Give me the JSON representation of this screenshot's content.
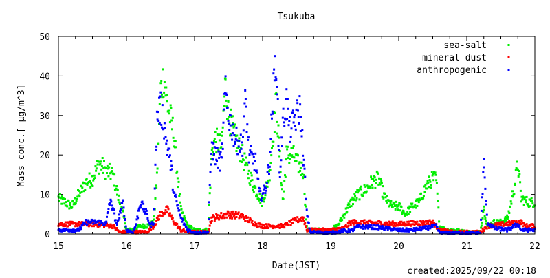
{
  "chart_data": {
    "type": "scatter",
    "title": "Tsukuba",
    "xlabel": "Date(JST)",
    "ylabel": "Mass conc.[ μg/m^3]",
    "footer": "created:2025/09/22 00:18",
    "xlim": [
      15,
      22
    ],
    "ylim": [
      0,
      50
    ],
    "xticks": [
      "15",
      "16",
      "17",
      "18",
      "19",
      "20",
      "21",
      "22"
    ],
    "yticks": [
      "0",
      "10",
      "20",
      "30",
      "40",
      "50"
    ],
    "legend_position": "top-right",
    "grid": false,
    "series": [
      {
        "name": "sea-salt",
        "color": "#00ee00",
        "points": [
          [
            15.0,
            9
          ],
          [
            15.1,
            8
          ],
          [
            15.2,
            7
          ],
          [
            15.3,
            10
          ],
          [
            15.4,
            13
          ],
          [
            15.5,
            14
          ],
          [
            15.6,
            18
          ],
          [
            15.7,
            16
          ],
          [
            15.8,
            15
          ],
          [
            15.9,
            8
          ],
          [
            15.95,
            5
          ],
          [
            16.0,
            1
          ],
          [
            16.1,
            1
          ],
          [
            16.2,
            2
          ],
          [
            16.3,
            2
          ],
          [
            16.4,
            3
          ],
          [
            16.45,
            15
          ],
          [
            16.5,
            36
          ],
          [
            16.55,
            40
          ],
          [
            16.6,
            33
          ],
          [
            16.7,
            25
          ],
          [
            16.75,
            15
          ],
          [
            16.8,
            6
          ],
          [
            16.9,
            2
          ],
          [
            17.0,
            1
          ],
          [
            17.2,
            1
          ],
          [
            17.25,
            20
          ],
          [
            17.3,
            24
          ],
          [
            17.4,
            22
          ],
          [
            17.45,
            38
          ],
          [
            17.5,
            30
          ],
          [
            17.6,
            24
          ],
          [
            17.7,
            20
          ],
          [
            17.8,
            15
          ],
          [
            17.9,
            11
          ],
          [
            18.0,
            8
          ],
          [
            18.1,
            15
          ],
          [
            18.15,
            25
          ],
          [
            18.2,
            33
          ],
          [
            18.25,
            20
          ],
          [
            18.3,
            8
          ],
          [
            18.35,
            20
          ],
          [
            18.45,
            20
          ],
          [
            18.5,
            18
          ],
          [
            18.6,
            16
          ],
          [
            18.65,
            1
          ],
          [
            18.7,
            1
          ],
          [
            19.0,
            1
          ],
          [
            19.1,
            2
          ],
          [
            19.2,
            5
          ],
          [
            19.3,
            8
          ],
          [
            19.4,
            10
          ],
          [
            19.5,
            11
          ],
          [
            19.6,
            13
          ],
          [
            19.7,
            14
          ],
          [
            19.8,
            9
          ],
          [
            19.9,
            7
          ],
          [
            20.0,
            7
          ],
          [
            20.1,
            5
          ],
          [
            20.2,
            7
          ],
          [
            20.3,
            8
          ],
          [
            20.4,
            12
          ],
          [
            20.5,
            14
          ],
          [
            20.55,
            14
          ],
          [
            20.6,
            2
          ],
          [
            20.7,
            1
          ],
          [
            20.8,
            1
          ],
          [
            21.0,
            0.5
          ],
          [
            21.2,
            0.5
          ],
          [
            21.25,
            7
          ],
          [
            21.3,
            2
          ],
          [
            21.4,
            3
          ],
          [
            21.5,
            3
          ],
          [
            21.6,
            4
          ],
          [
            21.7,
            12
          ],
          [
            21.75,
            18
          ],
          [
            21.8,
            9
          ],
          [
            21.9,
            8
          ],
          [
            22.0,
            8
          ]
        ]
      },
      {
        "name": "mineral dust",
        "color": "#ff0000",
        "points": [
          [
            15.0,
            2.5
          ],
          [
            15.5,
            2.5
          ],
          [
            15.8,
            2
          ],
          [
            15.9,
            0.5
          ],
          [
            16.3,
            0.5
          ],
          [
            16.4,
            2
          ],
          [
            16.5,
            5
          ],
          [
            16.6,
            6
          ],
          [
            16.7,
            3
          ],
          [
            16.8,
            1
          ],
          [
            16.9,
            0.5
          ],
          [
            17.2,
            0.5
          ],
          [
            17.25,
            4
          ],
          [
            17.5,
            5
          ],
          [
            17.7,
            4.5
          ],
          [
            17.9,
            2.5
          ],
          [
            18.0,
            2
          ],
          [
            18.3,
            2
          ],
          [
            18.5,
            3.5
          ],
          [
            18.6,
            4
          ],
          [
            18.65,
            1
          ],
          [
            19.0,
            1
          ],
          [
            19.2,
            1.5
          ],
          [
            19.3,
            3
          ],
          [
            20.0,
            2.5
          ],
          [
            20.5,
            3
          ],
          [
            20.6,
            1
          ],
          [
            20.8,
            0.5
          ],
          [
            21.2,
            0.5
          ],
          [
            21.3,
            2
          ],
          [
            21.8,
            3
          ],
          [
            21.85,
            2
          ],
          [
            22.0,
            2
          ]
        ]
      },
      {
        "name": "anthropogenic",
        "color": "#0000ff",
        "points": [
          [
            15.0,
            1
          ],
          [
            15.3,
            1
          ],
          [
            15.4,
            3
          ],
          [
            15.6,
            3
          ],
          [
            15.7,
            2.5
          ],
          [
            15.75,
            8
          ],
          [
            15.8,
            7
          ],
          [
            15.85,
            2
          ],
          [
            15.95,
            8
          ],
          [
            16.0,
            1
          ],
          [
            16.1,
            0.5
          ],
          [
            16.15,
            3
          ],
          [
            16.2,
            8
          ],
          [
            16.3,
            5
          ],
          [
            16.35,
            2
          ],
          [
            16.4,
            3
          ],
          [
            16.45,
            30
          ],
          [
            16.5,
            32
          ],
          [
            16.55,
            28
          ],
          [
            16.6,
            22
          ],
          [
            16.65,
            18
          ],
          [
            16.7,
            10
          ],
          [
            16.8,
            4
          ],
          [
            16.9,
            1
          ],
          [
            17.0,
            0.3
          ],
          [
            17.2,
            0.5
          ],
          [
            17.25,
            22
          ],
          [
            17.3,
            20
          ],
          [
            17.4,
            18
          ],
          [
            17.45,
            36
          ],
          [
            17.5,
            30
          ],
          [
            17.6,
            24
          ],
          [
            17.7,
            22
          ],
          [
            17.75,
            34
          ],
          [
            17.8,
            20
          ],
          [
            17.9,
            18
          ],
          [
            17.95,
            10
          ],
          [
            18.0,
            10
          ],
          [
            18.05,
            12
          ],
          [
            18.1,
            18
          ],
          [
            18.15,
            34
          ],
          [
            18.2,
            45
          ],
          [
            18.25,
            14
          ],
          [
            18.3,
            28
          ],
          [
            18.35,
            34
          ],
          [
            18.4,
            26
          ],
          [
            18.5,
            30
          ],
          [
            18.55,
            32
          ],
          [
            18.6,
            20
          ],
          [
            18.65,
            5
          ],
          [
            18.7,
            0.5
          ],
          [
            19.0,
            0.3
          ],
          [
            19.2,
            0.8
          ],
          [
            19.3,
            0.8
          ],
          [
            19.4,
            1.8
          ],
          [
            19.6,
            1.8
          ],
          [
            19.8,
            1.5
          ],
          [
            20.0,
            1
          ],
          [
            20.2,
            1
          ],
          [
            20.4,
            1.5
          ],
          [
            20.55,
            2
          ],
          [
            20.6,
            0.3
          ],
          [
            21.2,
            0.3
          ],
          [
            21.25,
            18
          ],
          [
            21.3,
            3
          ],
          [
            21.4,
            1.5
          ],
          [
            21.6,
            1
          ],
          [
            21.75,
            2.5
          ],
          [
            21.8,
            1
          ],
          [
            22.0,
            1
          ]
        ]
      }
    ]
  }
}
